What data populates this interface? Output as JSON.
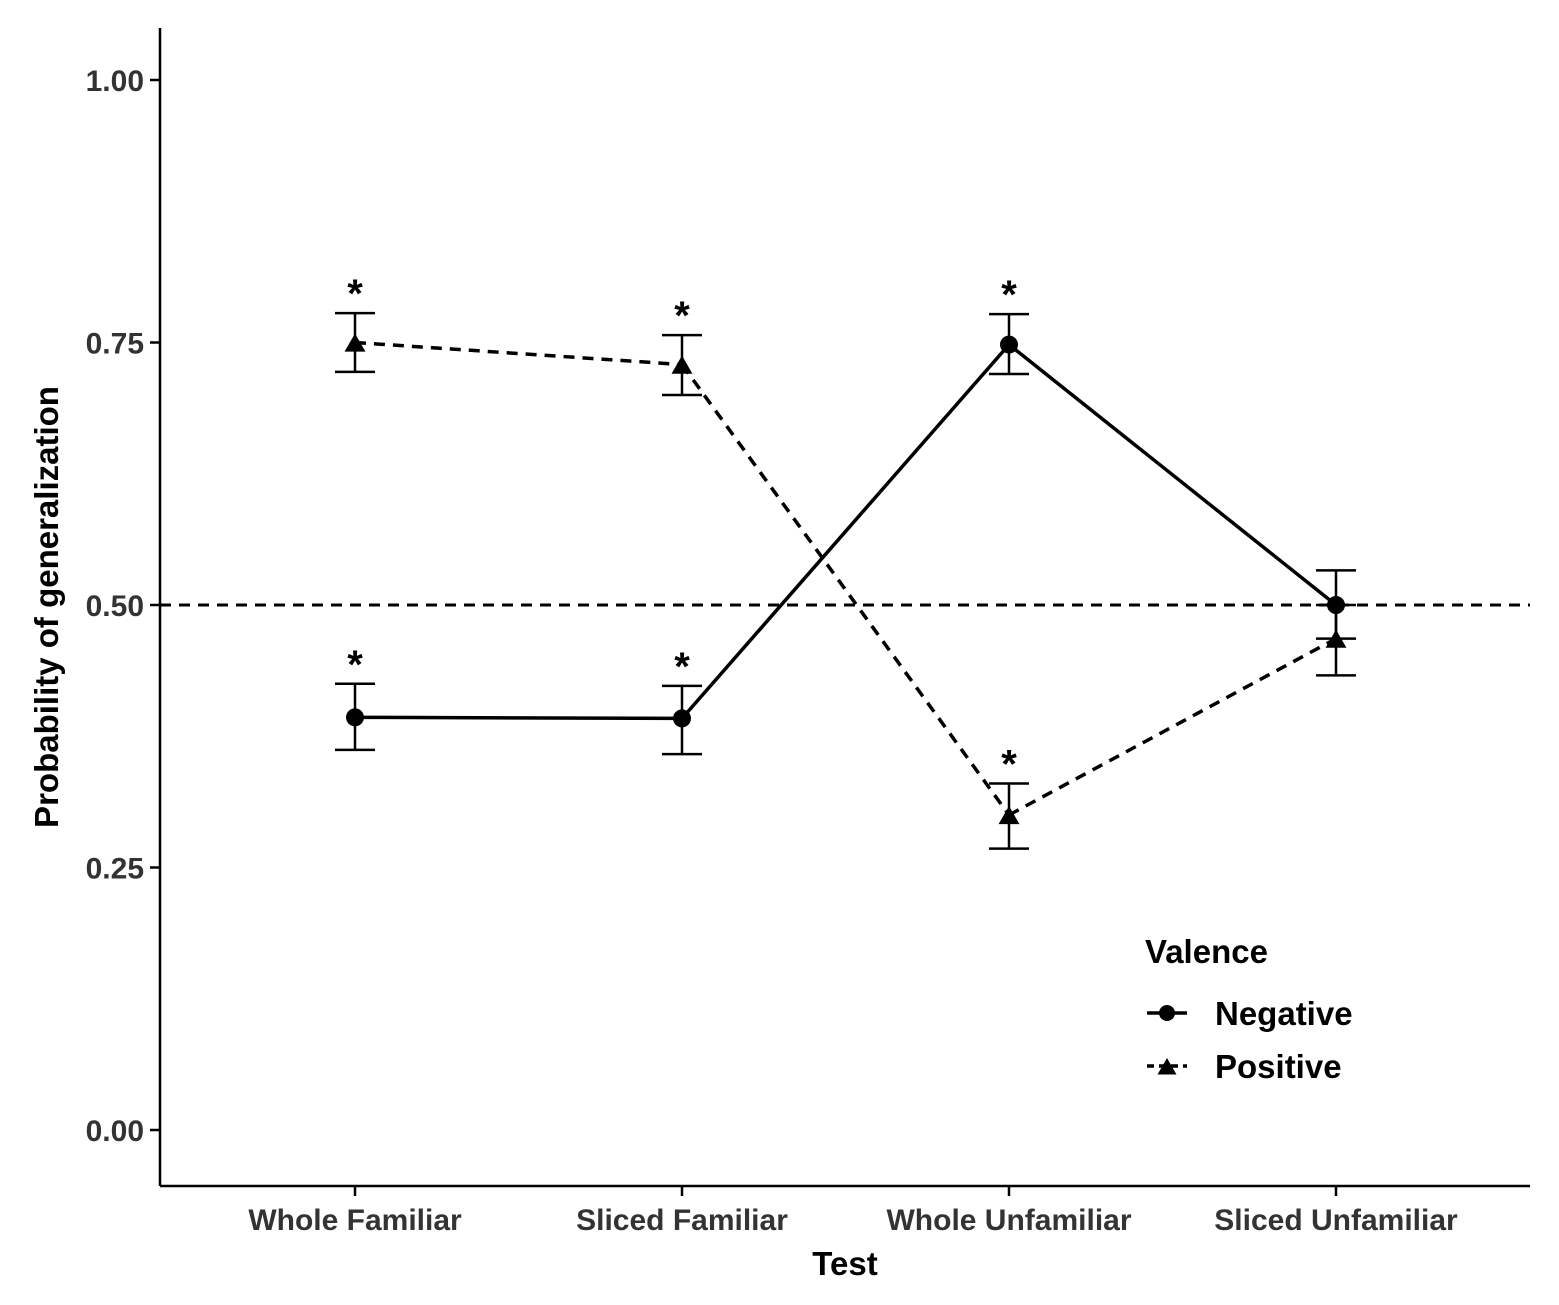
{
  "chart_data": {
    "type": "line",
    "title": "",
    "xlabel": "Test",
    "ylabel": "Probability of generalization",
    "categories": [
      "Whole Familiar",
      "Sliced Familiar",
      "Whole Unfamiliar",
      "Sliced Unfamiliar"
    ],
    "ylim": [
      -0.05,
      1.05
    ],
    "yticks": [
      0.0,
      0.25,
      0.5,
      0.75,
      1.0
    ],
    "ytick_labels": [
      "0.00",
      "0.25",
      "0.50",
      "0.75",
      "1.00"
    ],
    "reference_line": 0.5,
    "grid": false,
    "legend": {
      "title": "Valence",
      "position": "bottom-right",
      "entries": [
        "Negative",
        "Positive"
      ]
    },
    "significance_marker": "*",
    "series": [
      {
        "name": "Negative",
        "marker": "circle",
        "line": "solid",
        "values": [
          0.393,
          0.392,
          0.748,
          0.5
        ],
        "error_low": [
          0.362,
          0.358,
          0.72,
          0.468
        ],
        "error_high": [
          0.425,
          0.423,
          0.777,
          0.533
        ],
        "significant": [
          true,
          true,
          true,
          false
        ]
      },
      {
        "name": "Positive",
        "marker": "triangle",
        "line": "dashed",
        "values": [
          0.75,
          0.729,
          0.3,
          0.468
        ],
        "error_low": [
          0.722,
          0.7,
          0.268,
          0.433
        ],
        "error_high": [
          0.778,
          0.757,
          0.33,
          0.5
        ],
        "significant": [
          true,
          true,
          true,
          false
        ]
      }
    ]
  },
  "colors": {
    "ink": "#000000",
    "tick_text": "#333333",
    "background": "#ffffff"
  }
}
